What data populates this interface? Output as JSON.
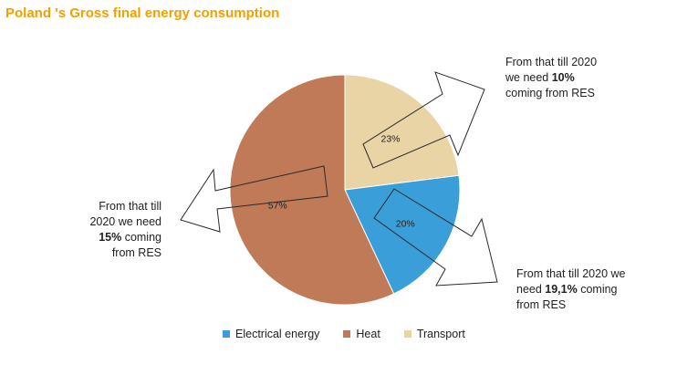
{
  "chart_data": {
    "type": "pie",
    "title": "Poland 's Gross final energy consumption",
    "categories": [
      "Transport",
      "Electrical energy",
      "Heat"
    ],
    "values": [
      23,
      20,
      57
    ],
    "value_labels": [
      "23%",
      "20%",
      "57%"
    ],
    "colors": [
      "#e8d4a5",
      "#3a9fd8",
      "#c07a58"
    ],
    "legend": {
      "placement": "bottom",
      "entries": [
        "Electrical energy",
        "Heat",
        "Transport"
      ],
      "colors": [
        "#3a9fd8",
        "#c07a58",
        "#e8d4a5"
      ]
    },
    "annotations": {
      "heat": {
        "line1": "From that till",
        "line2": "2020 we need",
        "bold": "15%",
        "rest3": " coming",
        "line4": "from RES"
      },
      "transport": {
        "line1": "From that till 2020",
        "line2_pre": "we need ",
        "bold": "10%",
        "line3": "coming from RES"
      },
      "electrical": {
        "line1": "From that till 2020 we",
        "line2_pre": "need ",
        "bold": "19,1%",
        "rest2": " coming",
        "line3": "from RES"
      }
    }
  }
}
